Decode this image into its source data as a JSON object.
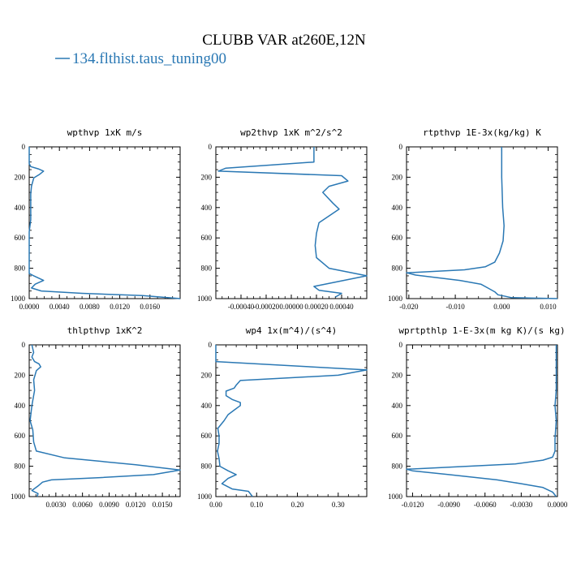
{
  "figure": {
    "title": "CLUBB VAR at260E,12N",
    "legend_label": "134.flthist.taus_tuning00",
    "line_color": "#2a78b4"
  },
  "chart_data": [
    {
      "type": "line",
      "title": "wpthvp   1xK m/s",
      "xlim": [
        0,
        0.02
      ],
      "ylim": [
        1000,
        0
      ],
      "xticks": [
        0.0,
        0.004,
        0.008,
        0.012,
        0.016
      ],
      "xtick_labels": [
        "0.0000",
        "0.0040",
        "0.0080",
        "0.0120",
        "0.0160"
      ],
      "yticks": [
        0,
        200,
        400,
        600,
        800,
        1000
      ],
      "ytick_labels": [
        "0",
        "200",
        "400",
        "600",
        "800",
        "1000"
      ],
      "series": [
        {
          "x": [
            0.0,
            0.0,
            0.0,
            0.0002,
            0.0012,
            0.0019,
            0.0014,
            0.0006,
            0.0003,
            0.0002,
            0.0002,
            0.0002,
            0.0002,
            0.0,
            0.0,
            0.0,
            0.0,
            0.0,
            0.0006,
            0.0019,
            0.0008,
            0.0003,
            0.0016,
            0.007,
            0.015,
            0.02
          ],
          "y": [
            0,
            60,
            110,
            130,
            145,
            160,
            180,
            205,
            260,
            310,
            360,
            420,
            480,
            560,
            650,
            740,
            820,
            835,
            850,
            880,
            905,
            930,
            950,
            965,
            980,
            1000
          ]
        }
      ]
    },
    {
      "type": "line",
      "title": "wp2thvp   1xK m^2/s^2",
      "xlim": [
        -0.0006,
        0.0006
      ],
      "ylim": [
        1000,
        0
      ],
      "xticks": [
        -0.0004,
        -0.0002,
        0.0,
        0.0002,
        0.0004
      ],
      "xtick_labels": [
        "-0.00040",
        "-0.00020",
        "0.00000",
        "0.00020",
        "0.00040"
      ],
      "yticks": [
        0,
        200,
        400,
        600,
        800,
        1000
      ],
      "ytick_labels": [
        "0",
        "200",
        "400",
        "600",
        "800",
        "1000"
      ],
      "series": [
        {
          "x": [
            0.00018,
            0.00018,
            -0.00052,
            -0.00058,
            0.0004,
            0.00045,
            0.0003,
            0.00025,
            0.00033,
            0.00038,
            0.00022,
            0.0002,
            0.00019,
            0.0002,
            0.0003,
            0.0006,
            0.00018,
            0.00022,
            0.0004,
            0.00035
          ],
          "y": [
            0,
            100,
            140,
            160,
            190,
            225,
            260,
            300,
            370,
            410,
            500,
            570,
            650,
            730,
            800,
            850,
            920,
            945,
            965,
            990
          ]
        }
      ]
    },
    {
      "type": "line",
      "title": "rtpthvp   1E-3x(kg/kg) K",
      "xlim": [
        -0.0205,
        0.012
      ],
      "ylim": [
        1000,
        0
      ],
      "xticks": [
        -0.02,
        -0.01,
        0.0,
        0.01
      ],
      "xtick_labels": [
        "-0.020",
        "-0.010",
        "0.000",
        "0.010"
      ],
      "yticks": [
        0,
        200,
        400,
        600,
        800,
        1000
      ],
      "ytick_labels": [
        "0",
        "200",
        "400",
        "600",
        "800",
        "1000"
      ],
      "series": [
        {
          "x": [
            0.0,
            0.0,
            0.0002,
            0.0005,
            0.0003,
            -0.0005,
            -0.0015,
            -0.0035,
            -0.008,
            -0.0205,
            -0.0185,
            -0.009,
            -0.0045,
            -0.003,
            -0.0015,
            -0.0008,
            0.0008,
            0.002,
            0.012
          ],
          "y": [
            0,
            200,
            400,
            520,
            620,
            700,
            760,
            790,
            810,
            830,
            845,
            880,
            905,
            930,
            955,
            975,
            985,
            993,
            1000
          ]
        }
      ]
    },
    {
      "type": "line",
      "title": "thlpthvp   1xK^2",
      "xlim": [
        0.0,
        0.017
      ],
      "ylim": [
        1000,
        0
      ],
      "xticks": [
        0.003,
        0.006,
        0.009,
        0.012,
        0.015
      ],
      "xtick_labels": [
        "0.0030",
        "0.0060",
        "0.0090",
        "0.0120",
        "0.0150"
      ],
      "yticks": [
        0,
        200,
        400,
        600,
        800,
        1000
      ],
      "ytick_labels": [
        "0",
        "200",
        "400",
        "600",
        "800",
        "1000"
      ],
      "series": [
        {
          "x": [
            0.0003,
            0.0005,
            0.0003,
            0.0006,
            0.0011,
            0.0013,
            0.0008,
            0.0005,
            0.0006,
            0.0003,
            0.0001,
            0.0004,
            0.0005,
            0.0008,
            0.004,
            0.012,
            0.017,
            0.014,
            0.008,
            0.0025,
            0.0015,
            0.001,
            0.0003,
            0.001,
            0.0009
          ],
          "y": [
            0,
            50,
            80,
            110,
            125,
            145,
            170,
            230,
            300,
            400,
            500,
            560,
            640,
            700,
            745,
            790,
            825,
            855,
            875,
            890,
            905,
            930,
            960,
            980,
            1000
          ]
        }
      ]
    },
    {
      "type": "line",
      "title": "wp4   1x(m^4)/(s^4)",
      "xlim": [
        0.0,
        0.37
      ],
      "ylim": [
        1000,
        0
      ],
      "xticks": [
        0.0,
        0.1,
        0.2,
        0.3
      ],
      "xtick_labels": [
        "0.00",
        "0.10",
        "0.20",
        "0.30"
      ],
      "yticks": [
        0,
        200,
        400,
        600,
        800,
        1000
      ],
      "ytick_labels": [
        "0",
        "200",
        "400",
        "600",
        "800",
        "1000"
      ],
      "series": [
        {
          "x": [
            0.0,
            0.0,
            0.0,
            0.37,
            0.3,
            0.06,
            0.05,
            0.045,
            0.025,
            0.025,
            0.04,
            0.06,
            0.06,
            0.045,
            0.03,
            0.02,
            0.005,
            0.008,
            0.008,
            0.004,
            0.008,
            0.01,
            0.03,
            0.05,
            0.03,
            0.015,
            0.04,
            0.08,
            0.09
          ],
          "y": [
            0,
            60,
            110,
            165,
            200,
            235,
            265,
            285,
            305,
            335,
            360,
            380,
            400,
            430,
            460,
            500,
            550,
            600,
            650,
            700,
            750,
            800,
            830,
            855,
            880,
            915,
            950,
            965,
            1000
          ]
        }
      ]
    },
    {
      "type": "line",
      "title": "wprtpthlp   1-E-3x(m kg K)/(s kg)",
      "xlim": [
        -0.0125,
        0.0
      ],
      "ylim": [
        1000,
        0
      ],
      "xticks": [
        -0.012,
        -0.009,
        -0.006,
        -0.003,
        0.0
      ],
      "xtick_labels": [
        "-0.0120",
        "-0.0090",
        "-0.0060",
        "-0.0030",
        "0.0000"
      ],
      "yticks": [
        0,
        200,
        400,
        600,
        800,
        1000
      ],
      "ytick_labels": [
        "0",
        "200",
        "400",
        "600",
        "800",
        "1000"
      ],
      "series": [
        {
          "x": [
            -0.0001,
            -0.0001,
            -0.0001,
            -0.0002,
            -0.0001,
            -0.0002,
            -0.0002,
            -0.0004,
            -0.0012,
            -0.0035,
            -0.0125,
            -0.012,
            -0.009,
            -0.005,
            -0.003,
            -0.0012,
            -0.0004,
            -0.0001
          ],
          "y": [
            0,
            150,
            300,
            400,
            500,
            620,
            700,
            740,
            760,
            785,
            820,
            830,
            855,
            890,
            915,
            940,
            970,
            1000
          ]
        }
      ]
    }
  ]
}
